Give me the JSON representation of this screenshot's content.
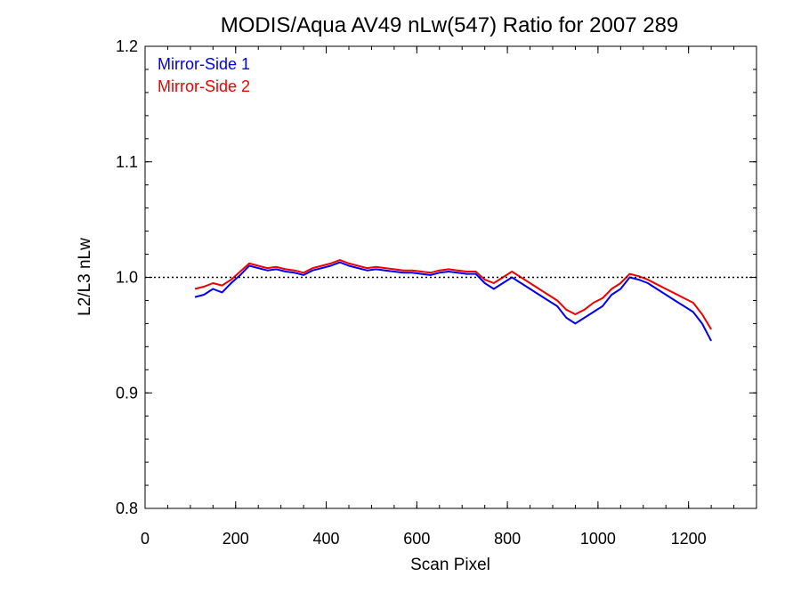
{
  "chart_data": {
    "type": "line",
    "title": "MODIS/Aqua AV49 nLw(547) Ratio for 2007 289",
    "xlabel": "Scan Pixel",
    "ylabel": "L2/L3 nLw",
    "xlim": [
      0,
      1350
    ],
    "ylim": [
      0.8,
      1.2
    ],
    "xticks": [
      "0",
      "200",
      "400",
      "600",
      "800",
      "1000",
      "1200"
    ],
    "yticks": [
      "0.8",
      "0.9",
      "1.0",
      "1.1",
      "1.2"
    ],
    "reference_line": {
      "y": 1.0,
      "style": "dotted"
    },
    "legend": {
      "placement": "top-left"
    },
    "grid": false,
    "x": [
      110,
      130,
      150,
      170,
      190,
      210,
      230,
      250,
      270,
      290,
      310,
      330,
      350,
      370,
      390,
      410,
      430,
      450,
      470,
      490,
      510,
      530,
      550,
      570,
      590,
      610,
      630,
      650,
      670,
      690,
      710,
      730,
      750,
      770,
      790,
      810,
      830,
      850,
      870,
      890,
      910,
      930,
      950,
      970,
      990,
      1010,
      1030,
      1050,
      1070,
      1090,
      1110,
      1130,
      1150,
      1170,
      1190,
      1210,
      1230,
      1250
    ],
    "series": [
      {
        "name": "Mirror-Side 1",
        "color": "#0000ee",
        "values": [
          0.983,
          0.985,
          0.99,
          0.987,
          0.995,
          1.002,
          1.01,
          1.008,
          1.006,
          1.007,
          1.005,
          1.004,
          1.002,
          1.006,
          1.008,
          1.01,
          1.013,
          1.01,
          1.008,
          1.006,
          1.007,
          1.006,
          1.005,
          1.004,
          1.004,
          1.003,
          1.002,
          1.004,
          1.005,
          1.004,
          1.003,
          1.003,
          0.995,
          0.99,
          0.995,
          1.0,
          0.995,
          0.99,
          0.985,
          0.98,
          0.975,
          0.965,
          0.96,
          0.965,
          0.97,
          0.975,
          0.985,
          0.99,
          1.0,
          0.998,
          0.995,
          0.99,
          0.985,
          0.98,
          0.975,
          0.97,
          0.96,
          0.945
        ]
      },
      {
        "name": "Mirror-Side 2",
        "color": "#ee0000",
        "values": [
          0.99,
          0.992,
          0.995,
          0.993,
          0.998,
          1.005,
          1.012,
          1.01,
          1.008,
          1.009,
          1.007,
          1.006,
          1.004,
          1.008,
          1.01,
          1.012,
          1.015,
          1.012,
          1.01,
          1.008,
          1.009,
          1.008,
          1.007,
          1.006,
          1.006,
          1.005,
          1.004,
          1.006,
          1.007,
          1.006,
          1.005,
          1.005,
          0.998,
          0.995,
          1.0,
          1.005,
          1.0,
          0.995,
          0.99,
          0.985,
          0.98,
          0.972,
          0.968,
          0.972,
          0.978,
          0.982,
          0.99,
          0.995,
          1.003,
          1.001,
          0.998,
          0.994,
          0.99,
          0.986,
          0.982,
          0.978,
          0.968,
          0.955
        ]
      }
    ]
  }
}
